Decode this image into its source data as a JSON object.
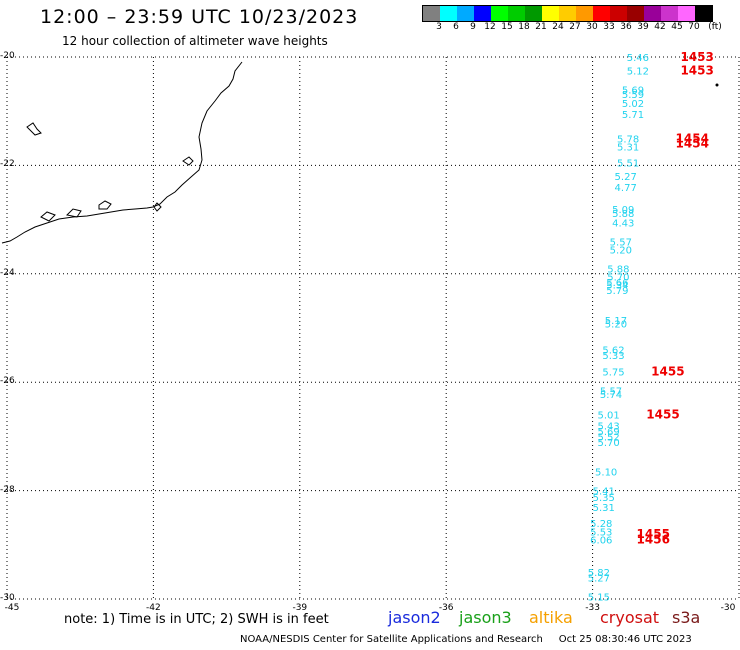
{
  "header": {
    "title": "12:00 – 23:59 UTC 10/23/2023",
    "subtitle": "12 hour collection of altimeter wave heights"
  },
  "colorbar": {
    "colors": [
      "#808080",
      "#00ffff",
      "#00aaff",
      "#0000ff",
      "#00ff00",
      "#00cc00",
      "#009900",
      "#ffff00",
      "#ffcc00",
      "#ff9900",
      "#ff0000",
      "#cc0000",
      "#990000",
      "#990099",
      "#cc33cc",
      "#ff66ff",
      "#000000"
    ],
    "labels": [
      "3",
      "6",
      "9",
      "12",
      "15",
      "18",
      "21",
      "24",
      "27",
      "30",
      "33",
      "36",
      "39",
      "42",
      "45",
      "70"
    ],
    "unit": "(ft)"
  },
  "axes": {
    "lat_labels": [
      "-20",
      "-22",
      "-24",
      "-26",
      "-28",
      "-30"
    ],
    "lon_labels": [
      "-45",
      "-42",
      "-39",
      "-36",
      "-33",
      "-30"
    ],
    "lat_range": [
      -30,
      -20
    ],
    "lon_range": [
      -45,
      -30
    ]
  },
  "colors": {
    "swh": "#22d3ee",
    "pass_time": "#ee0000",
    "jason2": "#1a2bdc",
    "jason3": "#1aa01a",
    "altika": "#f5a000",
    "cryosat": "#d01010",
    "s3a": "#7a1a1a"
  },
  "swh_readings": [
    {
      "lat": -20.0,
      "lon": -32.3,
      "value": "5.46"
    },
    {
      "lat": -20.25,
      "lon": -32.3,
      "value": "5.12"
    },
    {
      "lat": -20.6,
      "lon": -32.4,
      "value": "5.69"
    },
    {
      "lat": -20.68,
      "lon": -32.4,
      "value": "5.59"
    },
    {
      "lat": -20.85,
      "lon": -32.4,
      "value": "5.02"
    },
    {
      "lat": -21.05,
      "lon": -32.4,
      "value": "5.71"
    },
    {
      "lat": -21.5,
      "lon": -32.5,
      "value": "5.78"
    },
    {
      "lat": -21.65,
      "lon": -32.5,
      "value": "5.31"
    },
    {
      "lat": -21.95,
      "lon": -32.5,
      "value": "5.51"
    },
    {
      "lat": -22.2,
      "lon": -32.55,
      "value": "5.27"
    },
    {
      "lat": -22.4,
      "lon": -32.55,
      "value": "4.77"
    },
    {
      "lat": -22.8,
      "lon": -32.6,
      "value": "5.09"
    },
    {
      "lat": -22.88,
      "lon": -32.6,
      "value": "5.88"
    },
    {
      "lat": -23.05,
      "lon": -32.6,
      "value": "4.43"
    },
    {
      "lat": -23.4,
      "lon": -32.65,
      "value": "5.57"
    },
    {
      "lat": -23.55,
      "lon": -32.65,
      "value": "5.20"
    },
    {
      "lat": -23.9,
      "lon": -32.7,
      "value": "5.88"
    },
    {
      "lat": -24.05,
      "lon": -32.7,
      "value": "5.70"
    },
    {
      "lat": -24.15,
      "lon": -32.72,
      "value": "5.66"
    },
    {
      "lat": -24.2,
      "lon": -32.72,
      "value": "5.34"
    },
    {
      "lat": -24.3,
      "lon": -32.72,
      "value": "5.79"
    },
    {
      "lat": -24.85,
      "lon": -32.75,
      "value": "5.17"
    },
    {
      "lat": -24.92,
      "lon": -32.75,
      "value": "5.20"
    },
    {
      "lat": -25.4,
      "lon": -32.8,
      "value": "5.62"
    },
    {
      "lat": -25.5,
      "lon": -32.8,
      "value": "5.33"
    },
    {
      "lat": -25.8,
      "lon": -32.8,
      "value": "5.75"
    },
    {
      "lat": -26.15,
      "lon": -32.85,
      "value": "5.57"
    },
    {
      "lat": -26.22,
      "lon": -32.85,
      "value": "5.74"
    },
    {
      "lat": -26.6,
      "lon": -32.9,
      "value": "5.01"
    },
    {
      "lat": -26.8,
      "lon": -32.9,
      "value": "5.43"
    },
    {
      "lat": -26.9,
      "lon": -32.9,
      "value": "5.69"
    },
    {
      "lat": -27.0,
      "lon": -32.9,
      "value": "5.52"
    },
    {
      "lat": -27.1,
      "lon": -32.9,
      "value": "5.70"
    },
    {
      "lat": -27.65,
      "lon": -32.95,
      "value": "5.10"
    },
    {
      "lat": -28.0,
      "lon": -33.0,
      "value": "5.41"
    },
    {
      "lat": -28.12,
      "lon": -33.0,
      "value": "5.35"
    },
    {
      "lat": -28.3,
      "lon": -33.0,
      "value": "5.31"
    },
    {
      "lat": -28.6,
      "lon": -33.05,
      "value": "5.28"
    },
    {
      "lat": -28.75,
      "lon": -33.05,
      "value": "5.53"
    },
    {
      "lat": -28.9,
      "lon": -33.05,
      "value": "6.06"
    },
    {
      "lat": -29.5,
      "lon": -33.1,
      "value": "5.82"
    },
    {
      "lat": -29.6,
      "lon": -33.1,
      "value": "5.27"
    },
    {
      "lat": -29.95,
      "lon": -33.1,
      "value": "5.15"
    }
  ],
  "pass_times": [
    {
      "lat": -20.0,
      "lon": -31.2,
      "value": "1453"
    },
    {
      "lat": -20.25,
      "lon": -31.2,
      "value": "1453"
    },
    {
      "lat": -21.5,
      "lon": -31.3,
      "value": "1454"
    },
    {
      "lat": -21.6,
      "lon": -31.3,
      "value": "1454"
    },
    {
      "lat": -25.8,
      "lon": -31.8,
      "value": "1455"
    },
    {
      "lat": -26.6,
      "lon": -31.9,
      "value": "1455"
    },
    {
      "lat": -28.8,
      "lon": -32.1,
      "value": "1455"
    },
    {
      "lat": -28.9,
      "lon": -32.1,
      "value": "1456"
    }
  ],
  "footer": {
    "note": "note: 1) Time is in UTC; 2) SWH is in feet",
    "legend": [
      "jason2",
      "jason3",
      "altika",
      "cryosat",
      "s3a"
    ],
    "credit": "NOAA/NESDIS Center for Satellite Applications and Research",
    "timestamp": "Oct 25 08:30:46 UTC 2023"
  }
}
